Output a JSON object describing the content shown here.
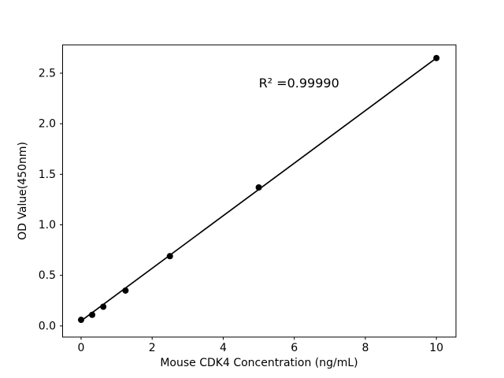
{
  "figure": {
    "background_color": "#ffffff",
    "foreground_color": "#000000"
  },
  "chart_data": {
    "type": "scatter",
    "title": "",
    "xlabel": "Mouse CDK4 Concentration (ng/mL)",
    "ylabel": "OD Value(450nm)",
    "x": [
      0,
      0.3125,
      0.625,
      1.25,
      2.5,
      5,
      10
    ],
    "y": [
      0.06,
      0.11,
      0.19,
      0.35,
      0.69,
      1.37,
      2.65
    ],
    "fit_line": {
      "x1": 0,
      "y1": 0.05,
      "x2": 10,
      "y2": 2.65
    },
    "annotation": {
      "text": "R² =0.99990",
      "x": 5.0,
      "y": 2.4
    },
    "xlim": [
      -0.52,
      10.55
    ],
    "ylim": [
      -0.11,
      2.78
    ],
    "x_ticks": {
      "values": [
        0,
        2,
        4,
        6,
        8,
        10
      ],
      "labels": [
        "0",
        "2",
        "4",
        "6",
        "8",
        "10"
      ]
    },
    "y_ticks": {
      "values": [
        0,
        0.5,
        1.0,
        1.5,
        2.0,
        2.5
      ],
      "labels": [
        "0.0",
        "0.5",
        "1.0",
        "1.5",
        "2.0",
        "2.5"
      ]
    },
    "grid": false,
    "legend_position": "none",
    "marker_color": "#000000",
    "line_color": "#000000",
    "marker_radius_px": 4
  }
}
